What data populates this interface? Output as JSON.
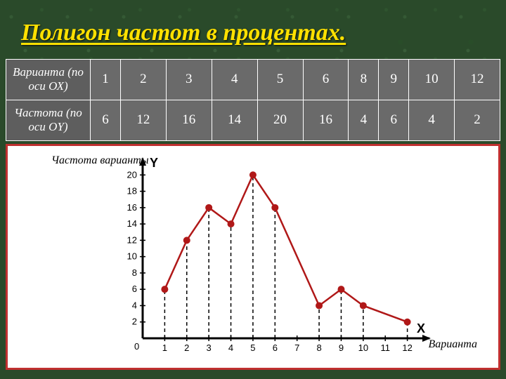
{
  "title": "Полигон частот в процентах.",
  "table": {
    "row1_label": "Варианта (по оси ОХ)",
    "row2_label": "Частота (по оси OY)",
    "variants": [
      1,
      2,
      3,
      4,
      5,
      6,
      8,
      9,
      10,
      12
    ],
    "freqs": [
      6,
      12,
      16,
      14,
      20,
      16,
      4,
      6,
      4,
      2
    ]
  },
  "chart": {
    "ylabel": "Частота варианты",
    "xlabel": "Варианта",
    "y_axis_label": "Y",
    "x_axis_label": "X",
    "x_ticks": [
      1,
      2,
      3,
      4,
      5,
      6,
      7,
      8,
      9,
      10,
      11,
      12
    ],
    "y_ticks": [
      2,
      4,
      6,
      8,
      10,
      12,
      14,
      16,
      18,
      20
    ],
    "xlim": [
      0,
      13
    ],
    "ylim": [
      0,
      22
    ],
    "origin_label": "0",
    "points_x": [
      1,
      2,
      3,
      4,
      5,
      6,
      8,
      9,
      10,
      12
    ],
    "points_y": [
      6,
      12,
      16,
      14,
      20,
      16,
      4,
      6,
      4,
      2
    ],
    "line_color": "#b01818",
    "line_width": 2.5,
    "marker_color": "#b01818",
    "marker_radius": 5,
    "drop_line_color": "#000000",
    "drop_dash": "5,4",
    "axis_color": "#000000",
    "axis_width": 3,
    "tick_fontsize": 13,
    "background": "#ffffff"
  }
}
